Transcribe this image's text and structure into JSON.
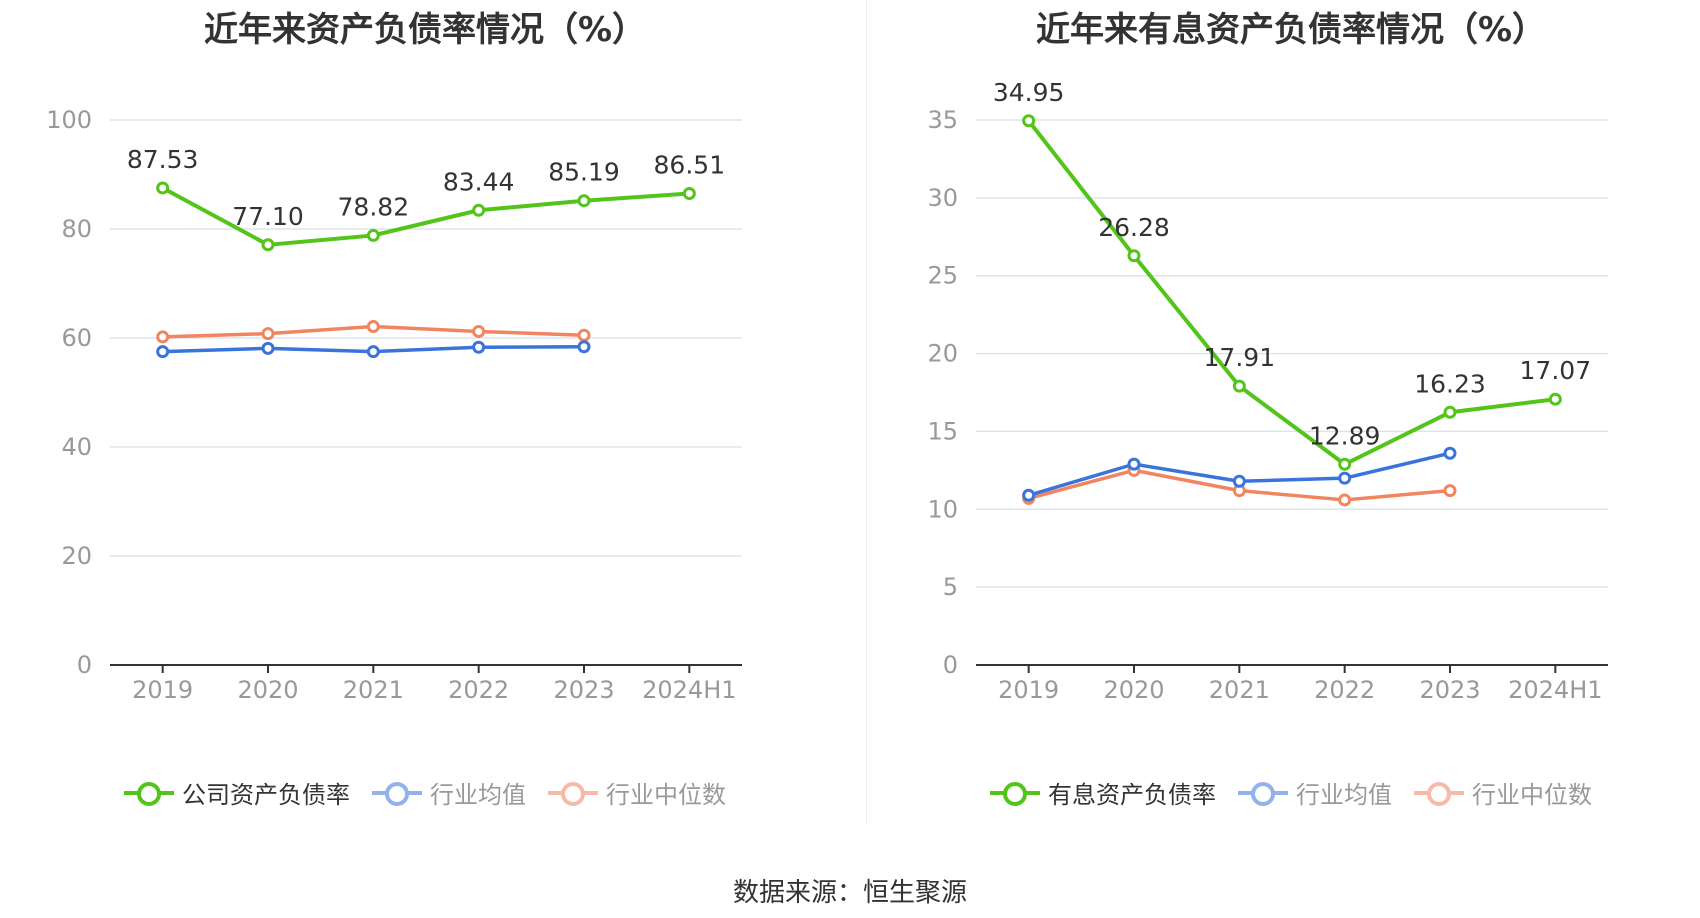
{
  "source_label": "数据来源：恒生聚源",
  "colors": {
    "company": "#52c41a",
    "avg": "#3a74db",
    "median": "#f08560",
    "grid": "#dde4ef",
    "axis": "#333333",
    "tick": "#999999"
  },
  "chart_data": [
    {
      "type": "line",
      "title": "近年来资产负债率情况（%）",
      "categories": [
        "2019",
        "2020",
        "2021",
        "2022",
        "2023",
        "2024H1"
      ],
      "ylim": [
        0,
        100
      ],
      "yticks": [
        0,
        20,
        40,
        60,
        80,
        100
      ],
      "grid": true,
      "legend_position": "bottom",
      "series": [
        {
          "name": "公司资产负债率",
          "color": "#52c41a",
          "values": [
            87.53,
            77.1,
            78.82,
            83.44,
            85.19,
            86.51
          ],
          "labels": [
            "87.53",
            "77.10",
            "78.82",
            "83.44",
            "85.19",
            "86.51"
          ]
        },
        {
          "name": "行业均值",
          "color": "#3a74db",
          "values": [
            57.5,
            58.1,
            57.5,
            58.3,
            58.4,
            null
          ]
        },
        {
          "name": "行业中位数",
          "color": "#f08560",
          "values": [
            60.2,
            60.8,
            62.1,
            61.2,
            60.5,
            null
          ]
        }
      ]
    },
    {
      "type": "line",
      "title": "近年来有息资产负债率情况（%）",
      "categories": [
        "2019",
        "2020",
        "2021",
        "2022",
        "2023",
        "2024H1"
      ],
      "ylim": [
        0,
        35
      ],
      "yticks": [
        0,
        5,
        10,
        15,
        20,
        25,
        30,
        35
      ],
      "grid": true,
      "legend_position": "bottom",
      "series": [
        {
          "name": "有息资产负债率",
          "color": "#52c41a",
          "values": [
            34.95,
            26.28,
            17.91,
            12.89,
            16.23,
            17.07
          ],
          "labels": [
            "34.95",
            "26.28",
            "17.91",
            "12.89",
            "16.23",
            "17.07"
          ]
        },
        {
          "name": "行业均值",
          "color": "#3a74db",
          "values": [
            10.9,
            12.9,
            11.8,
            12.0,
            13.6,
            null
          ]
        },
        {
          "name": "行业中位数",
          "color": "#f08560",
          "values": [
            10.7,
            12.5,
            11.2,
            10.6,
            11.2,
            null
          ]
        }
      ]
    }
  ]
}
